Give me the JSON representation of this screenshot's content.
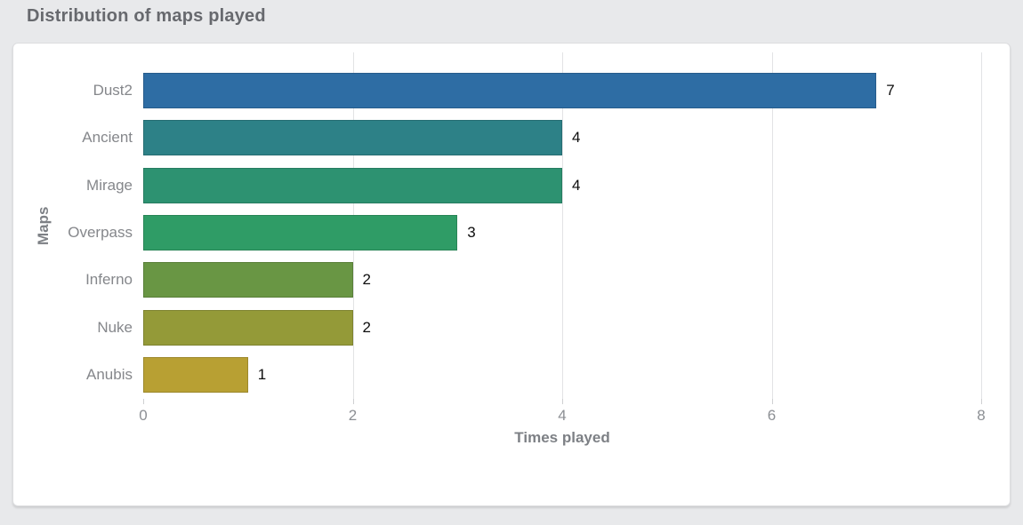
{
  "page": {
    "background": "#e8e9eb",
    "card_background": "#ffffff"
  },
  "header": {
    "title": "Distribution of maps played",
    "title_color": "#67696e"
  },
  "chart_data": {
    "type": "bar",
    "orientation": "horizontal",
    "title": "Distribution of maps played",
    "categories": [
      "Dust2",
      "Ancient",
      "Mirage",
      "Overpass",
      "Inferno",
      "Nuke",
      "Anubis"
    ],
    "values": [
      7,
      4,
      4,
      3,
      2,
      2,
      1
    ],
    "value_labels": [
      "7",
      "4",
      "4",
      "3",
      "2",
      "2",
      "1"
    ],
    "bar_colors": [
      "#2e6da4",
      "#2d8187",
      "#2d9271",
      "#2f9c66",
      "#699644",
      "#949a38",
      "#b8a033"
    ],
    "xlabel": "Times played",
    "ylabel": "Maps",
    "x_ticks": [
      0,
      2,
      4,
      6,
      8
    ],
    "xlim": [
      0,
      8
    ],
    "grid": true,
    "gridline_color": "#e2e3e5",
    "label_color": "#85878b",
    "legend": "none"
  }
}
